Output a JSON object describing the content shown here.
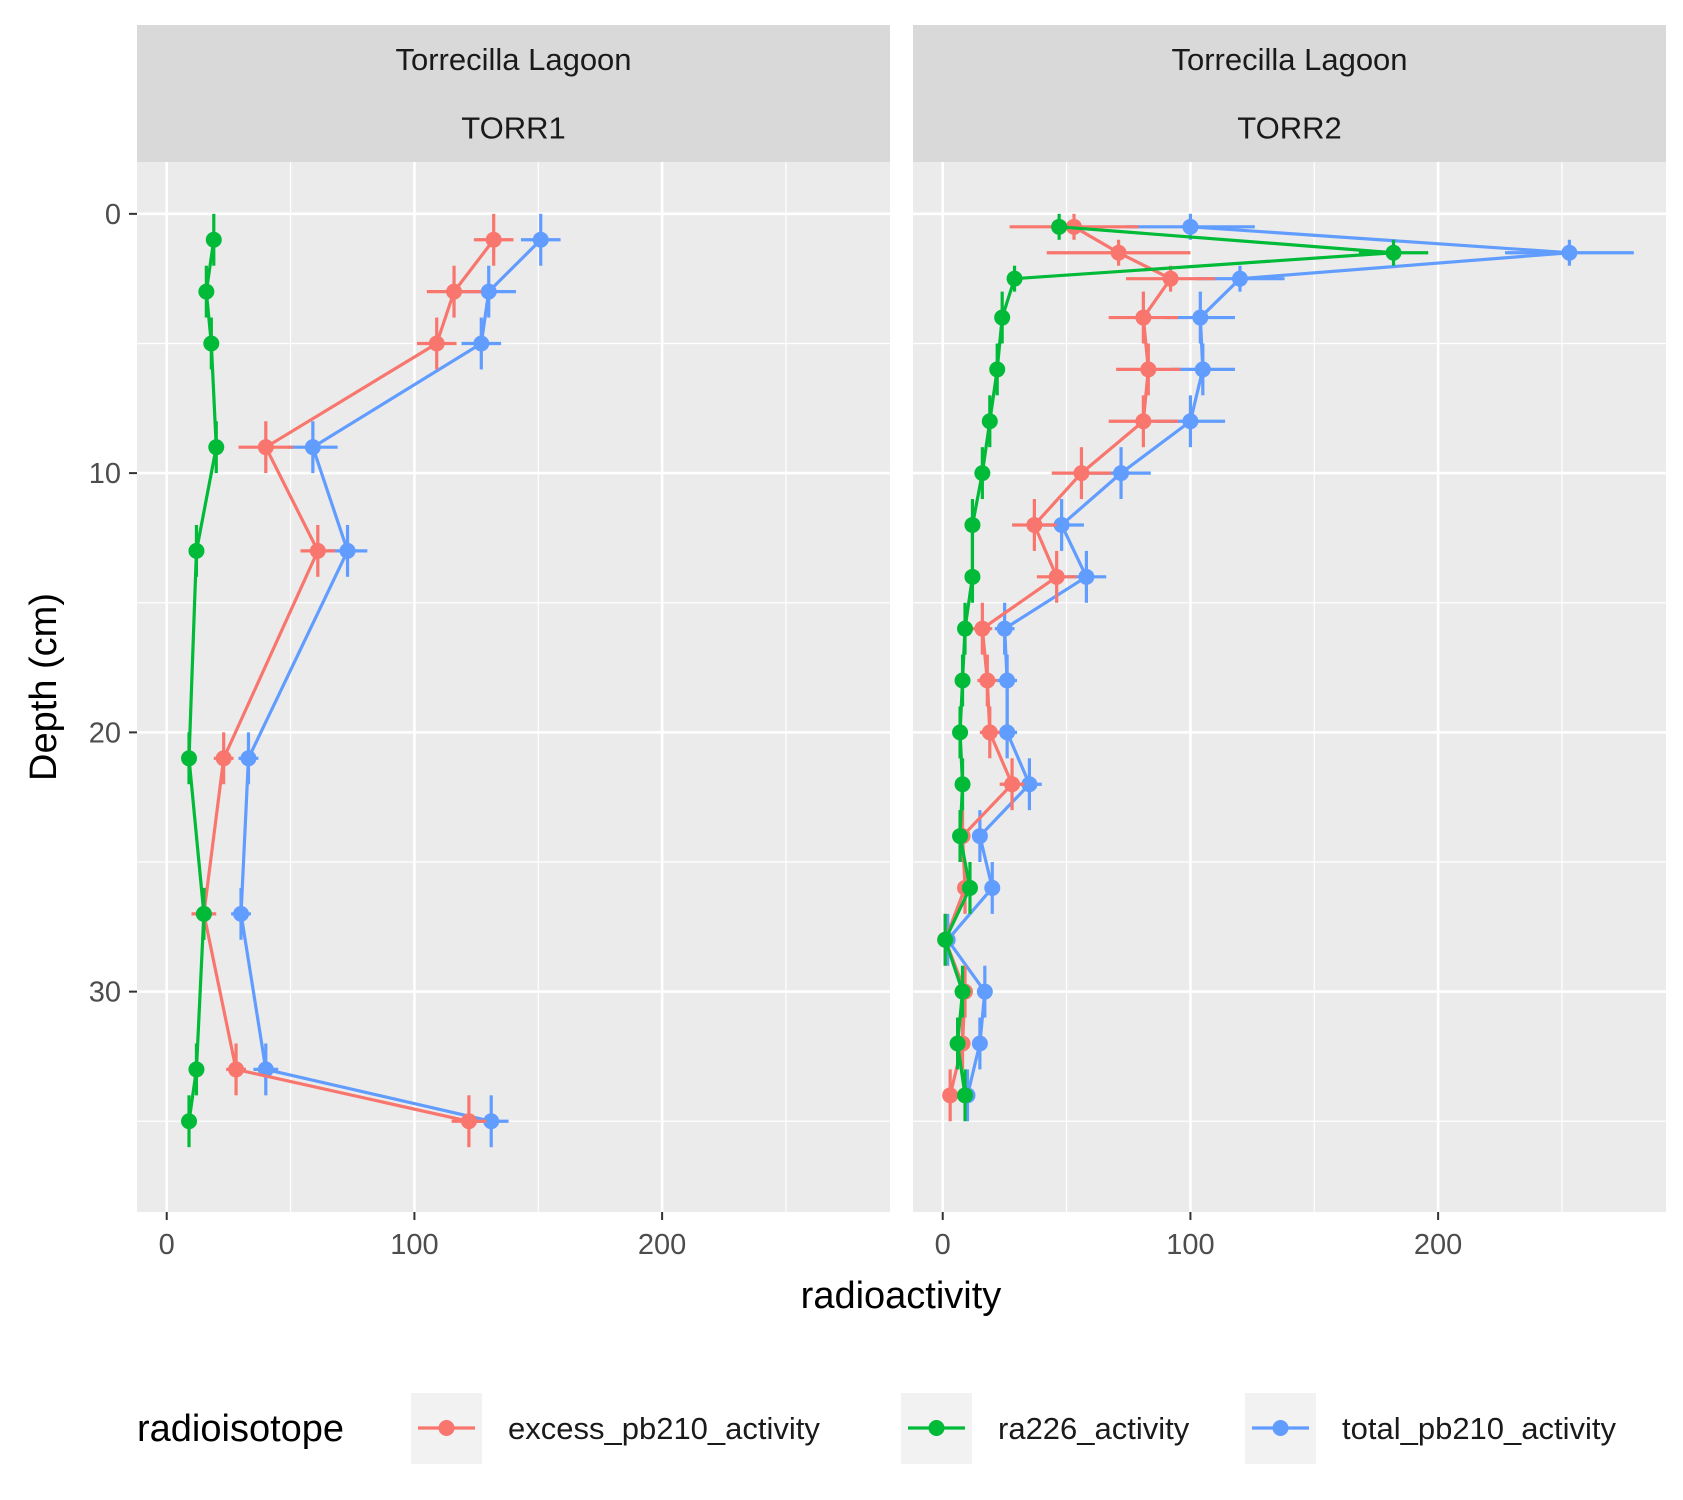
{
  "chart_data": {
    "type": "scatter",
    "subtype": "depth-profile with error bars, connected points",
    "ylabel": "Depth (cm)",
    "xlabel": "radioactivity",
    "y_reversed": true,
    "xlim": [
      -12,
      292
    ],
    "ylim": [
      -2,
      38.5
    ],
    "x_ticks": [
      0,
      100,
      200
    ],
    "y_ticks": [
      0,
      10,
      20,
      30
    ],
    "grid": true,
    "legend": {
      "position": "bottom",
      "title": "radioisotope",
      "items": [
        "excess_pb210_activity",
        "ra226_activity",
        "total_pb210_activity"
      ]
    },
    "colors": {
      "excess_pb210_activity": "#F8766D",
      "ra226_activity": "#00BA38",
      "total_pb210_activity": "#619CFF"
    },
    "panels": [
      {
        "strip_top": "Torrecilla Lagoon",
        "strip_bottom": "TORR1",
        "series": [
          {
            "name": "excess_pb210_activity",
            "points": [
              {
                "x": 132,
                "y": 1,
                "xerr": 8,
                "yerr": 1
              },
              {
                "x": 116,
                "y": 3,
                "xerr": 11,
                "yerr": 1
              },
              {
                "x": 109,
                "y": 5,
                "xerr": 8,
                "yerr": 1
              },
              {
                "x": 40,
                "y": 9,
                "xerr": 11,
                "yerr": 1
              },
              {
                "x": 61,
                "y": 13,
                "xerr": 7,
                "yerr": 1
              },
              {
                "x": 23,
                "y": 21,
                "xerr": 4,
                "yerr": 1
              },
              {
                "x": 15,
                "y": 27,
                "xerr": 5,
                "yerr": 1
              },
              {
                "x": 28,
                "y": 33,
                "xerr": 4,
                "yerr": 1
              },
              {
                "x": 122,
                "y": 35,
                "xerr": 7,
                "yerr": 1
              }
            ]
          },
          {
            "name": "ra226_activity",
            "points": [
              {
                "x": 19,
                "y": 1,
                "xerr": 1,
                "yerr": 1
              },
              {
                "x": 16,
                "y": 3,
                "xerr": 1,
                "yerr": 1
              },
              {
                "x": 18,
                "y": 5,
                "xerr": 1,
                "yerr": 1
              },
              {
                "x": 20,
                "y": 9,
                "xerr": 1,
                "yerr": 1
              },
              {
                "x": 12,
                "y": 13,
                "xerr": 1,
                "yerr": 1
              },
              {
                "x": 9,
                "y": 21,
                "xerr": 1,
                "yerr": 1
              },
              {
                "x": 15,
                "y": 27,
                "xerr": 1,
                "yerr": 1
              },
              {
                "x": 12,
                "y": 33,
                "xerr": 1,
                "yerr": 1
              },
              {
                "x": 9,
                "y": 35,
                "xerr": 1,
                "yerr": 1
              }
            ]
          },
          {
            "name": "total_pb210_activity",
            "points": [
              {
                "x": 151,
                "y": 1,
                "xerr": 8,
                "yerr": 1
              },
              {
                "x": 130,
                "y": 3,
                "xerr": 11,
                "yerr": 1
              },
              {
                "x": 127,
                "y": 5,
                "xerr": 8,
                "yerr": 1
              },
              {
                "x": 59,
                "y": 9,
                "xerr": 10,
                "yerr": 1
              },
              {
                "x": 73,
                "y": 13,
                "xerr": 8,
                "yerr": 1
              },
              {
                "x": 33,
                "y": 21,
                "xerr": 4,
                "yerr": 1
              },
              {
                "x": 30,
                "y": 27,
                "xerr": 4,
                "yerr": 1
              },
              {
                "x": 40,
                "y": 33,
                "xerr": 5,
                "yerr": 1
              },
              {
                "x": 131,
                "y": 35,
                "xerr": 7,
                "yerr": 1
              }
            ]
          }
        ]
      },
      {
        "strip_top": "Torrecilla Lagoon",
        "strip_bottom": "TORR2",
        "series": [
          {
            "name": "excess_pb210_activity",
            "points": [
              {
                "x": 53,
                "y": 0.5,
                "xerr": 26,
                "yerr": 0.5
              },
              {
                "x": 71,
                "y": 1.5,
                "xerr": 29,
                "yerr": 0.5
              },
              {
                "x": 92,
                "y": 2.5,
                "xerr": 18,
                "yerr": 0.5
              },
              {
                "x": 81,
                "y": 4,
                "xerr": 14,
                "yerr": 1
              },
              {
                "x": 83,
                "y": 6,
                "xerr": 13,
                "yerr": 1
              },
              {
                "x": 81,
                "y": 8,
                "xerr": 14,
                "yerr": 1
              },
              {
                "x": 56,
                "y": 10,
                "xerr": 12,
                "yerr": 1
              },
              {
                "x": 37,
                "y": 12,
                "xerr": 9,
                "yerr": 1
              },
              {
                "x": 46,
                "y": 14,
                "xerr": 8,
                "yerr": 1
              },
              {
                "x": 16,
                "y": 16,
                "xerr": 4,
                "yerr": 1
              },
              {
                "x": 18,
                "y": 18,
                "xerr": 4,
                "yerr": 1
              },
              {
                "x": 19,
                "y": 20,
                "xerr": 4,
                "yerr": 1
              },
              {
                "x": 28,
                "y": 22,
                "xerr": 5,
                "yerr": 1
              },
              {
                "x": 8,
                "y": 24,
                "xerr": 2,
                "yerr": 1
              },
              {
                "x": 9,
                "y": 26,
                "xerr": 3,
                "yerr": 1
              },
              {
                "x": 1,
                "y": 28,
                "xerr": 2,
                "yerr": 1
              },
              {
                "x": 9,
                "y": 30,
                "xerr": 3,
                "yerr": 1
              },
              {
                "x": 8,
                "y": 32,
                "xerr": 3,
                "yerr": 1
              },
              {
                "x": 3,
                "y": 34,
                "xerr": 2,
                "yerr": 1
              }
            ]
          },
          {
            "name": "ra226_activity",
            "points": [
              {
                "x": 47,
                "y": 0.5,
                "xerr": 3,
                "yerr": 0.5
              },
              {
                "x": 182,
                "y": 1.5,
                "xerr": 14,
                "yerr": 0.5
              },
              {
                "x": 29,
                "y": 2.5,
                "xerr": 2,
                "yerr": 0.5
              },
              {
                "x": 24,
                "y": 4,
                "xerr": 1,
                "yerr": 1
              },
              {
                "x": 22,
                "y": 6,
                "xerr": 1,
                "yerr": 1
              },
              {
                "x": 19,
                "y": 8,
                "xerr": 1,
                "yerr": 1
              },
              {
                "x": 16,
                "y": 10,
                "xerr": 1,
                "yerr": 1
              },
              {
                "x": 12,
                "y": 12,
                "xerr": 1,
                "yerr": 1
              },
              {
                "x": 12,
                "y": 14,
                "xerr": 1,
                "yerr": 1
              },
              {
                "x": 9,
                "y": 16,
                "xerr": 1,
                "yerr": 1
              },
              {
                "x": 8,
                "y": 18,
                "xerr": 1,
                "yerr": 1
              },
              {
                "x": 7,
                "y": 20,
                "xerr": 1,
                "yerr": 1
              },
              {
                "x": 8,
                "y": 22,
                "xerr": 1,
                "yerr": 1
              },
              {
                "x": 7,
                "y": 24,
                "xerr": 1,
                "yerr": 1
              },
              {
                "x": 11,
                "y": 26,
                "xerr": 1,
                "yerr": 1
              },
              {
                "x": 1,
                "y": 28,
                "xerr": 1,
                "yerr": 1
              },
              {
                "x": 8,
                "y": 30,
                "xerr": 1,
                "yerr": 1
              },
              {
                "x": 6,
                "y": 32,
                "xerr": 1,
                "yerr": 1
              },
              {
                "x": 9,
                "y": 34,
                "xerr": 1,
                "yerr": 1
              }
            ]
          },
          {
            "name": "total_pb210_activity",
            "points": [
              {
                "x": 100,
                "y": 0.5,
                "xerr": 26,
                "yerr": 0.5
              },
              {
                "x": 253,
                "y": 1.5,
                "xerr": 26,
                "yerr": 0.5
              },
              {
                "x": 120,
                "y": 2.5,
                "xerr": 18,
                "yerr": 0.5
              },
              {
                "x": 104,
                "y": 4,
                "xerr": 14,
                "yerr": 1
              },
              {
                "x": 105,
                "y": 6,
                "xerr": 13,
                "yerr": 1
              },
              {
                "x": 100,
                "y": 8,
                "xerr": 14,
                "yerr": 1
              },
              {
                "x": 72,
                "y": 10,
                "xerr": 12,
                "yerr": 1
              },
              {
                "x": 48,
                "y": 12,
                "xerr": 9,
                "yerr": 1
              },
              {
                "x": 58,
                "y": 14,
                "xerr": 8,
                "yerr": 1
              },
              {
                "x": 25,
                "y": 16,
                "xerr": 4,
                "yerr": 1
              },
              {
                "x": 26,
                "y": 18,
                "xerr": 4,
                "yerr": 1
              },
              {
                "x": 26,
                "y": 20,
                "xerr": 4,
                "yerr": 1
              },
              {
                "x": 35,
                "y": 22,
                "xerr": 5,
                "yerr": 1
              },
              {
                "x": 15,
                "y": 24,
                "xerr": 3,
                "yerr": 1
              },
              {
                "x": 20,
                "y": 26,
                "xerr": 3,
                "yerr": 1
              },
              {
                "x": 2,
                "y": 28,
                "xerr": 2,
                "yerr": 1
              },
              {
                "x": 17,
                "y": 30,
                "xerr": 3,
                "yerr": 1
              },
              {
                "x": 15,
                "y": 32,
                "xerr": 3,
                "yerr": 1
              },
              {
                "x": 10,
                "y": 34,
                "xerr": 2,
                "yerr": 1
              }
            ]
          }
        ]
      }
    ]
  }
}
